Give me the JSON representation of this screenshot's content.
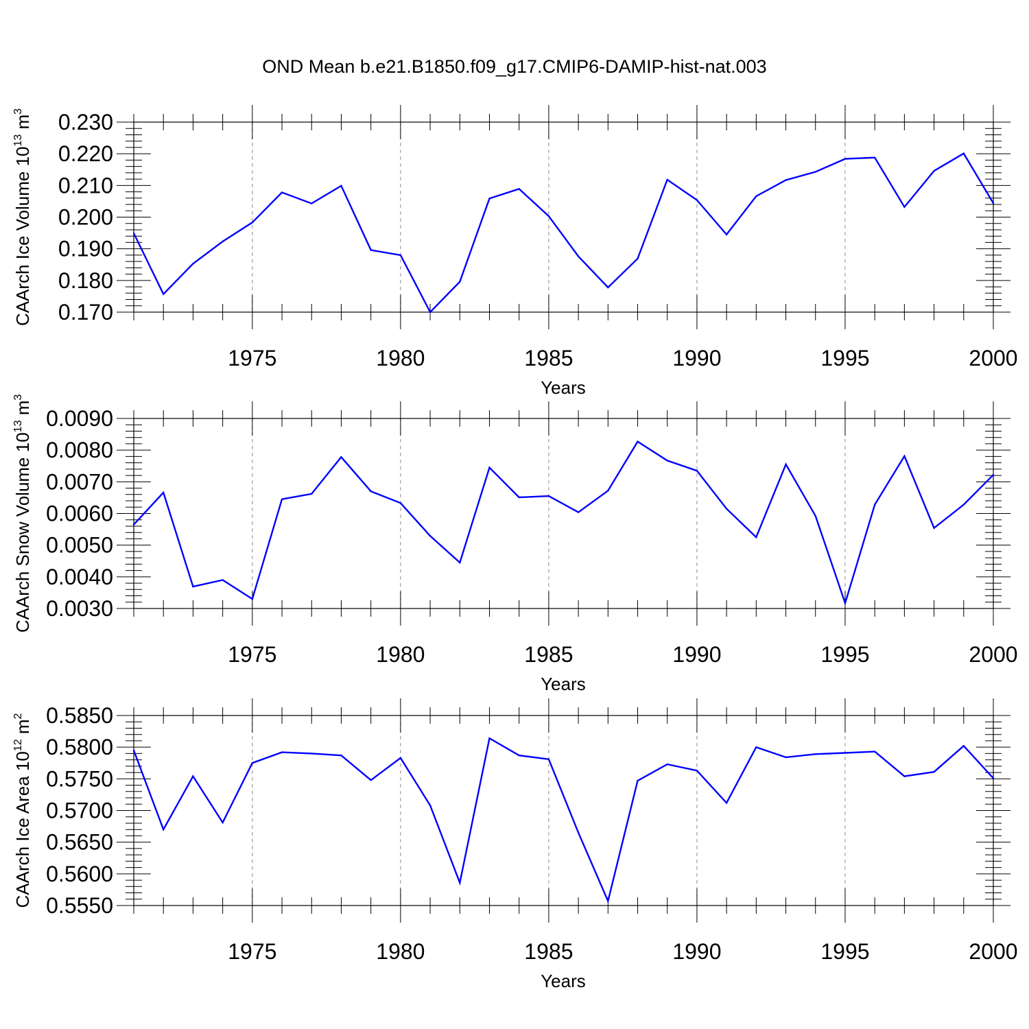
{
  "title": "OND Mean b.e21.B1850.f09_g17.CMIP6-DAMIP-hist-nat.003",
  "chart_data": [
    {
      "type": "line",
      "title": "",
      "xlabel": "Years",
      "ylabel": {
        "prefix": "CAArch Ice Volume 10",
        "exponent": "13",
        "unit": " m",
        "unit_exponent": "3"
      },
      "xlim": [
        1971,
        2000
      ],
      "ylim": [
        0.17,
        0.23
      ],
      "xticks": [
        1975,
        1980,
        1985,
        1990,
        1995,
        2000
      ],
      "yticks": [
        "0.170",
        "0.180",
        "0.190",
        "0.200",
        "0.210",
        "0.220",
        "0.230"
      ],
      "grid": "vertical dashed at major x ticks",
      "line_color": "#0000ff",
      "x": [
        1971,
        1972,
        1973,
        1974,
        1975,
        1976,
        1977,
        1978,
        1979,
        1980,
        1981,
        1982,
        1983,
        1984,
        1985,
        1986,
        1987,
        1988,
        1989,
        1990,
        1991,
        1992,
        1993,
        1994,
        1995,
        1996,
        1997,
        1998,
        1999,
        2000
      ],
      "series": [
        {
          "values": [
            0.1949,
            0.1757,
            0.1853,
            0.1923,
            0.1983,
            0.2078,
            0.2043,
            0.2099,
            0.1896,
            0.188,
            0.17,
            0.1796,
            0.2059,
            0.2089,
            0.2003,
            0.1876,
            0.1778,
            0.1869,
            0.2118,
            0.2054,
            0.1945,
            0.2066,
            0.2117,
            0.2143,
            0.2184,
            0.2188,
            0.2032,
            0.2146,
            0.2201,
            0.2044
          ]
        }
      ]
    },
    {
      "type": "line",
      "title": "",
      "xlabel": "Years",
      "ylabel": {
        "prefix": "CAArch Snow Volume 10",
        "exponent": "13",
        "unit": " m",
        "unit_exponent": "3"
      },
      "xlim": [
        1971,
        2000
      ],
      "ylim": [
        0.003,
        0.009
      ],
      "xticks": [
        1975,
        1980,
        1985,
        1990,
        1995,
        2000
      ],
      "yticks": [
        "0.0030",
        "0.0040",
        "0.0050",
        "0.0060",
        "0.0070",
        "0.0080",
        "0.0090"
      ],
      "grid": "vertical dashed at major x ticks",
      "line_color": "#0000ff",
      "x": [
        1971,
        1972,
        1973,
        1974,
        1975,
        1976,
        1977,
        1978,
        1979,
        1980,
        1981,
        1982,
        1983,
        1984,
        1985,
        1986,
        1987,
        1988,
        1989,
        1990,
        1991,
        1992,
        1993,
        1994,
        1995,
        1996,
        1997,
        1998,
        1999,
        2000
      ],
      "series": [
        {
          "values": [
            0.00565,
            0.00666,
            0.00369,
            0.0039,
            0.0033,
            0.00645,
            0.00662,
            0.00778,
            0.0067,
            0.00633,
            0.00529,
            0.00445,
            0.00745,
            0.00651,
            0.00655,
            0.00604,
            0.00672,
            0.00827,
            0.00767,
            0.00735,
            0.00615,
            0.00525,
            0.00755,
            0.00592,
            0.00317,
            0.00628,
            0.00781,
            0.00554,
            0.00628,
            0.00722
          ]
        }
      ]
    },
    {
      "type": "line",
      "title": "",
      "xlabel": "Years",
      "ylabel": {
        "prefix": "CAArch Ice Area 10",
        "exponent": "12",
        "unit": " m",
        "unit_exponent": "2"
      },
      "xlim": [
        1971,
        2000
      ],
      "ylim": [
        0.555,
        0.585
      ],
      "xticks": [
        1975,
        1980,
        1985,
        1990,
        1995,
        2000
      ],
      "yticks": [
        "0.5550",
        "0.5600",
        "0.5650",
        "0.5700",
        "0.5750",
        "0.5800",
        "0.5850"
      ],
      "grid": "vertical dashed at major x ticks",
      "line_color": "#0000ff",
      "x": [
        1971,
        1972,
        1973,
        1974,
        1975,
        1976,
        1977,
        1978,
        1979,
        1980,
        1981,
        1982,
        1983,
        1984,
        1985,
        1986,
        1987,
        1988,
        1989,
        1990,
        1991,
        1992,
        1993,
        1994,
        1995,
        1996,
        1997,
        1998,
        1999,
        2000
      ],
      "series": [
        {
          "values": [
            0.5795,
            0.567,
            0.5754,
            0.5681,
            0.5775,
            0.5792,
            0.579,
            0.5787,
            0.5748,
            0.5783,
            0.5708,
            0.5586,
            0.5814,
            0.5787,
            0.5781,
            0.5665,
            0.5557,
            0.5747,
            0.5773,
            0.5763,
            0.5712,
            0.58,
            0.5784,
            0.5789,
            0.5791,
            0.5793,
            0.5754,
            0.5761,
            0.5802,
            0.5751
          ]
        }
      ]
    }
  ]
}
